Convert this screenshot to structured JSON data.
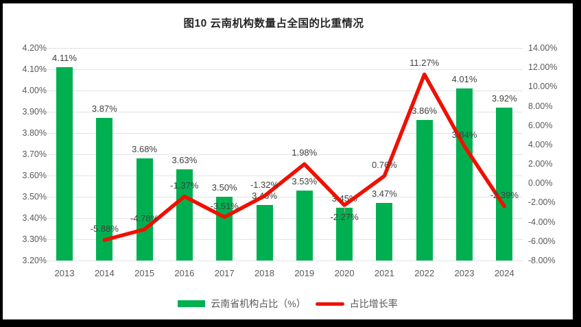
{
  "title": "图10 云南机构数量占全国的比重情况",
  "legend": [
    {
      "label": "云南省机构占比（%）",
      "type": "bar"
    },
    {
      "label": "占比增长率",
      "type": "line"
    }
  ],
  "colors": {
    "bar": "#00B050",
    "line": "#EE1100",
    "grid": "#E2E2E2",
    "axis_text": "#595959",
    "data_label_text": "#404040",
    "frame": "#000000",
    "background": "#FFFFFF"
  },
  "chart_data": {
    "type": "bar",
    "subtype": "bar-and-line-combo",
    "title": "图10 云南机构数量占全国的比重情况",
    "categories": [
      "2013",
      "2014",
      "2015",
      "2016",
      "2017",
      "2018",
      "2019",
      "2020",
      "2021",
      "2022",
      "2023",
      "2024"
    ],
    "series": [
      {
        "name": "云南省机构占比（%）",
        "type": "bar",
        "axis": "left",
        "color": "#00B050",
        "values": [
          4.11,
          3.87,
          3.68,
          3.63,
          3.5,
          3.46,
          3.53,
          3.45,
          3.47,
          3.86,
          4.01,
          3.92
        ],
        "labels": [
          "4.11%",
          "3.87%",
          "3.68%",
          "3.63%",
          "3.50%",
          "3.46%",
          "3.53%",
          "3.45%",
          "3.47%",
          "3.86%",
          "4.01%",
          "3.92%"
        ]
      },
      {
        "name": "占比增长率",
        "type": "line",
        "axis": "right",
        "color": "#EE1100",
        "values": [
          null,
          -5.88,
          -4.78,
          -1.37,
          -3.51,
          -1.32,
          1.98,
          -2.27,
          0.76,
          11.27,
          3.84,
          -2.39
        ],
        "labels": [
          null,
          "-5.88%",
          "-4.78%",
          "-1.37%",
          "-3.51%",
          "-1.32%",
          "1.98%",
          "-2.27%",
          "0.76%",
          "11.27%",
          "3.84%",
          "-2.39%"
        ],
        "labels_below_indices": [
          7
        ]
      }
    ],
    "left_axis": {
      "min": 3.2,
      "max": 4.2,
      "step": 0.1,
      "ticks": [
        "4.20%",
        "4.10%",
        "4.00%",
        "3.90%",
        "3.80%",
        "3.70%",
        "3.60%",
        "3.50%",
        "3.40%",
        "3.30%",
        "3.20%"
      ]
    },
    "right_axis": {
      "min": -8,
      "max": 14,
      "step": 2,
      "ticks": [
        "14.00%",
        "12.00%",
        "10.00%",
        "8.00%",
        "6.00%",
        "4.00%",
        "2.00%",
        "0.00%",
        "-2.00%",
        "-4.00%",
        "-6.00%",
        "-8.00%"
      ]
    },
    "grid": true,
    "legend_position": "bottom",
    "xlabel": "",
    "ylabel_left": "",
    "ylabel_right": ""
  }
}
